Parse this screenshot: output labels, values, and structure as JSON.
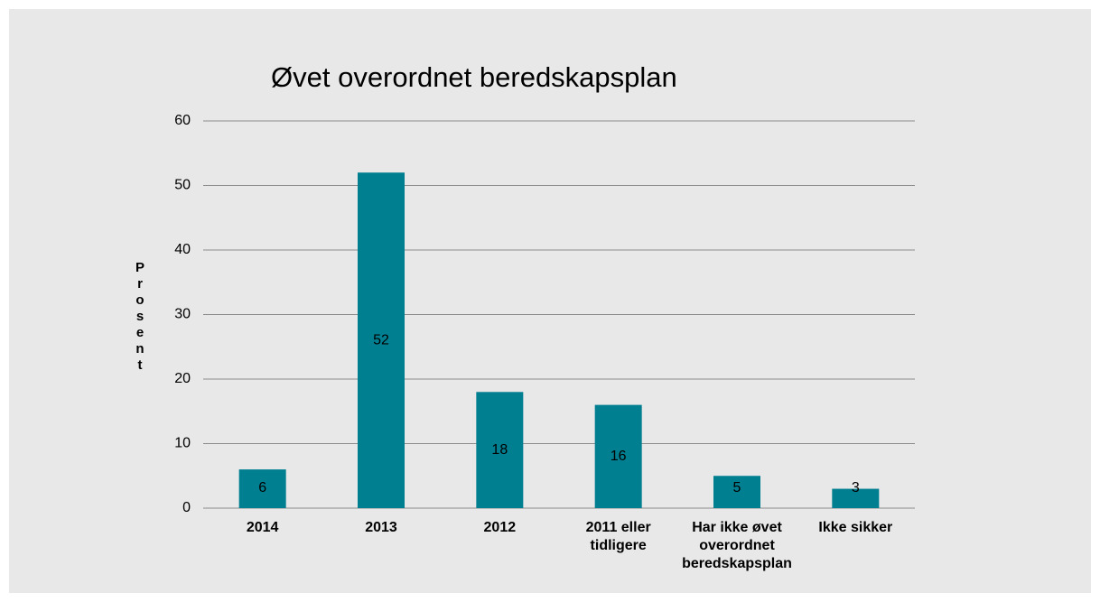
{
  "chart_data": {
    "type": "bar",
    "title": "Øvet overordnet beredskapsplan",
    "y_label": "Prosent",
    "categories": [
      "2014",
      "2013",
      "2012",
      "2011 eller tidligere",
      "Har ikke øvet overordnet beredskapsplan",
      "Ikke sikker"
    ],
    "values": [
      6,
      52,
      18,
      16,
      5,
      3
    ],
    "color": "#007f91",
    "ylim": [
      0,
      60
    ],
    "yticks": [
      0,
      10,
      20,
      30,
      40,
      50,
      60
    ],
    "grid": true
  }
}
